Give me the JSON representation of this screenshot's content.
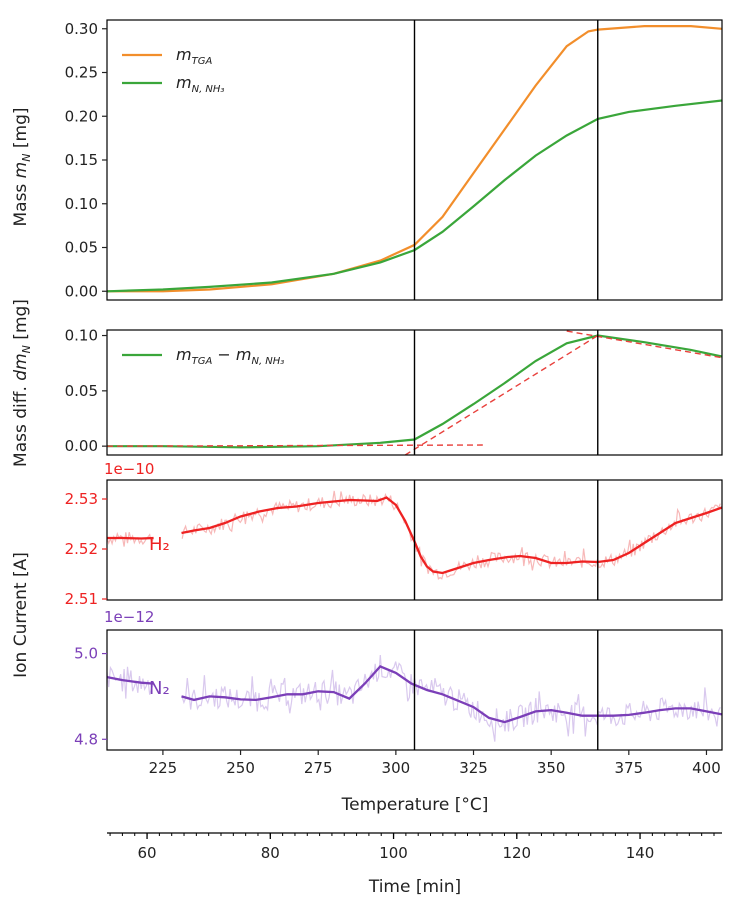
{
  "colors": {
    "orange": "#f28e2b",
    "green": "#3aa63a",
    "red": "#ee2222",
    "red_light": "#f7b8b8",
    "purple": "#7b3fb8",
    "purple_light": "#d9c9ee",
    "dashed": "#e8413c",
    "axis": "#000000"
  },
  "chart_data": [
    {
      "type": "line",
      "panel": "mass",
      "ylabel": "Mass m_N [mg]",
      "ylabel_main": "Mass ",
      "ylabel_sym": "m",
      "ylabel_sub": "N",
      "ylabel_unit": " [mg]",
      "ylim": [
        -0.01,
        0.31
      ],
      "yticks": [
        0.0,
        0.05,
        0.1,
        0.15,
        0.2,
        0.25,
        0.3
      ],
      "ytick_labels": [
        "0.00",
        "0.05",
        "0.10",
        "0.15",
        "0.20",
        "0.25",
        "0.30"
      ],
      "xlim": [
        207,
        405
      ],
      "vlines": [
        306,
        365
      ],
      "legend_position": "upper-left",
      "series": [
        {
          "name": "m_TGA",
          "legend_sym": "m",
          "legend_sub": "TGA",
          "color": "orange",
          "x": [
            207,
            225,
            240,
            260,
            280,
            295,
            306,
            315,
            325,
            335,
            345,
            355,
            362,
            365,
            380,
            395,
            405
          ],
          "y": [
            0.0,
            0.0,
            0.002,
            0.008,
            0.02,
            0.035,
            0.053,
            0.085,
            0.135,
            0.185,
            0.235,
            0.28,
            0.297,
            0.299,
            0.303,
            0.303,
            0.3
          ]
        },
        {
          "name": "m_N,NH3",
          "legend_sym": "m",
          "legend_sub": "N, NH₃",
          "color": "green",
          "x": [
            207,
            225,
            240,
            260,
            280,
            295,
            306,
            315,
            325,
            335,
            345,
            355,
            365,
            375,
            390,
            405
          ],
          "y": [
            0.0,
            0.002,
            0.005,
            0.01,
            0.02,
            0.033,
            0.047,
            0.068,
            0.097,
            0.127,
            0.155,
            0.178,
            0.197,
            0.205,
            0.212,
            0.218
          ]
        }
      ]
    },
    {
      "type": "line",
      "panel": "mass-diff",
      "ylabel": "Mass diff. dm_N [mg]",
      "ylabel_main": "Mass diff. ",
      "ylabel_sym": "dm",
      "ylabel_sub": "N",
      "ylabel_unit": " [mg]",
      "ylim": [
        -0.008,
        0.105
      ],
      "yticks": [
        0.0,
        0.05,
        0.1
      ],
      "ytick_labels": [
        "0.00",
        "0.05",
        "0.10"
      ],
      "xlim": [
        207,
        405
      ],
      "vlines": [
        306,
        365
      ],
      "legend_position": "upper-left",
      "series": [
        {
          "name": "m_TGA − m_N,NH3",
          "legend_sym": "m",
          "legend_sub": "TGA",
          "legend_mid": " − m",
          "legend_sub2": "N, NH₃",
          "color": "green",
          "x": [
            207,
            225,
            250,
            275,
            295,
            306,
            315,
            325,
            335,
            345,
            355,
            365,
            380,
            395,
            405
          ],
          "y": [
            0.0,
            0.0,
            -0.001,
            0.0,
            0.003,
            0.006,
            0.02,
            0.038,
            0.057,
            0.077,
            0.093,
            0.1,
            0.094,
            0.087,
            0.081
          ]
        }
      ],
      "fit_lines": [
        {
          "x": [
            207,
            328
          ],
          "y": [
            0.0,
            0.001
          ]
        },
        {
          "x": [
            303,
            365
          ],
          "y": [
            -0.008,
            0.1
          ]
        },
        {
          "x": [
            355,
            405
          ],
          "y": [
            0.104,
            0.08
          ]
        }
      ]
    },
    {
      "type": "line",
      "panel": "ion-h2",
      "exponent_label": "1e−10",
      "ylim": [
        2.5098,
        2.5338
      ],
      "yticks": [
        2.51,
        2.52,
        2.53
      ],
      "ytick_labels": [
        "2.51",
        "2.52",
        "2.53"
      ],
      "xlim": [
        207,
        405
      ],
      "vlines": [
        306,
        365
      ],
      "species_label": "H₂",
      "color": "red",
      "x": [
        207,
        212,
        218,
        222,
        226,
        231,
        235,
        240,
        245,
        250,
        256,
        262,
        268,
        275,
        280,
        285,
        290,
        294,
        297,
        300,
        303,
        306,
        308,
        310,
        312,
        315,
        320,
        325,
        330,
        336,
        340,
        345,
        350,
        355,
        360,
        365,
        370,
        375,
        380,
        385,
        390,
        395,
        400,
        405
      ],
      "y": [
        2.5222,
        2.5222,
        2.5221,
        2.5222,
        null,
        2.5232,
        2.5237,
        2.5242,
        2.5252,
        2.5265,
        2.5275,
        2.5282,
        2.5285,
        2.5292,
        2.5295,
        2.5298,
        2.5297,
        2.5296,
        2.5303,
        2.5288,
        2.5256,
        2.5215,
        2.5185,
        2.5165,
        2.5155,
        2.5152,
        2.5162,
        2.5172,
        2.5178,
        2.5184,
        2.5186,
        2.5182,
        2.5172,
        2.5172,
        2.5175,
        2.5174,
        2.5178,
        2.5192,
        2.5212,
        2.5232,
        2.5252,
        2.5262,
        2.5272,
        2.5283
      ]
    },
    {
      "type": "line",
      "panel": "ion-n2",
      "exponent_label": "1e−12",
      "ylabel": "Ion Current [A]",
      "ylim": [
        4.775,
        5.055
      ],
      "yticks": [
        4.8,
        5.0
      ],
      "ytick_labels": [
        "4.8",
        "5.0"
      ],
      "xlim": [
        207,
        405
      ],
      "vlines": [
        306,
        365
      ],
      "species_label": "N₂",
      "color": "purple",
      "xlabel": "Temperature [°C]",
      "xticks": [
        225,
        250,
        275,
        300,
        325,
        350,
        375,
        400
      ],
      "xtick_labels": [
        "225",
        "250",
        "275",
        "300",
        "325",
        "350",
        "375",
        "400"
      ],
      "x": [
        207,
        212,
        218,
        222,
        226,
        231,
        235,
        240,
        245,
        250,
        255,
        260,
        265,
        270,
        275,
        280,
        285,
        290,
        295,
        300,
        305,
        310,
        315,
        320,
        325,
        330,
        335,
        340,
        345,
        350,
        355,
        360,
        365,
        370,
        375,
        380,
        385,
        390,
        395,
        400,
        405
      ],
      "y": [
        4.945,
        4.938,
        4.932,
        4.93,
        null,
        4.9,
        4.892,
        4.9,
        4.898,
        4.893,
        4.892,
        4.898,
        4.905,
        4.905,
        4.912,
        4.91,
        4.895,
        4.93,
        4.97,
        4.955,
        4.93,
        4.915,
        4.905,
        4.89,
        4.875,
        4.85,
        4.84,
        4.852,
        4.865,
        4.868,
        4.862,
        4.855,
        4.855,
        4.855,
        4.857,
        4.862,
        4.868,
        4.872,
        4.872,
        4.865,
        4.858
      ]
    },
    {
      "type": "axis",
      "panel": "time-axis",
      "xlabel": "Time [min]",
      "xlim": [
        53.5,
        153.3
      ],
      "xticks": [
        60,
        80,
        100,
        120,
        140
      ],
      "xtick_labels": [
        "60",
        "80",
        "100",
        "120",
        "140"
      ],
      "minor_step": 2
    }
  ]
}
